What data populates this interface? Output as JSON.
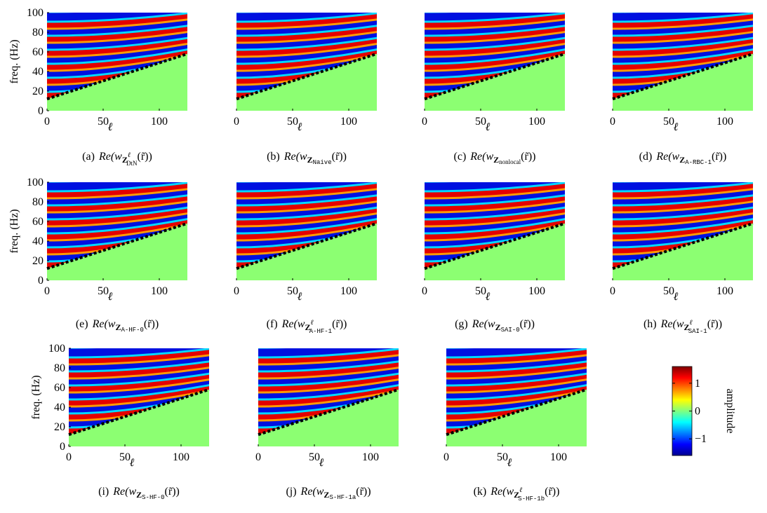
{
  "chart_data": [
    {
      "type": "heatmap",
      "xlim": [
        0,
        125
      ],
      "ylim": [
        0,
        100
      ],
      "xticks": [
        0,
        50,
        100
      ],
      "yticks": [
        0,
        20,
        40,
        60,
        80,
        100
      ],
      "ylabel": "freq. (Hz)",
      "xlabel": "ℓ",
      "line": {
        "x": [
          0,
          125
        ],
        "values": [
          12,
          58
        ]
      },
      "caption": {
        "label": "(a)",
        "pre": "Re(w",
        "sym": "Z",
        "sup": "ℓ",
        "sub": "DtN",
        "post": "(r̃))"
      }
    },
    {
      "type": "heatmap",
      "xlim": [
        0,
        125
      ],
      "ylim": [
        0,
        100
      ],
      "xticks": [
        0,
        50,
        100
      ],
      "xlabel": "ℓ",
      "line": {
        "x": [
          0,
          125
        ],
        "values": [
          12,
          58
        ]
      },
      "caption": {
        "label": "(b)",
        "pre": "Re(w",
        "sym": "Z",
        "sub": "Naive",
        "sub_font": "mono",
        "post": "(r̃))"
      }
    },
    {
      "type": "heatmap",
      "xlim": [
        0,
        125
      ],
      "ylim": [
        0,
        100
      ],
      "xticks": [
        0,
        50,
        100
      ],
      "xlabel": "ℓ",
      "line": {
        "x": [
          0,
          125
        ],
        "values": [
          12,
          58
        ]
      },
      "caption": {
        "label": "(c)",
        "pre": "Re(w",
        "sym": "Z",
        "sub": "nonlocal",
        "post": "(r̃))"
      }
    },
    {
      "type": "heatmap",
      "xlim": [
        0,
        125
      ],
      "ylim": [
        0,
        100
      ],
      "xticks": [
        0,
        50,
        100
      ],
      "xlabel": "ℓ",
      "line": {
        "x": [
          0,
          125
        ],
        "values": [
          12,
          58
        ]
      },
      "caption": {
        "label": "(d)",
        "pre": "Re(w",
        "sym": "Z",
        "sub": "A-RBC-1",
        "sub_font": "mono",
        "post": "(r̃))"
      }
    },
    {
      "type": "heatmap",
      "xlim": [
        0,
        125
      ],
      "ylim": [
        0,
        100
      ],
      "xticks": [
        0,
        50,
        100
      ],
      "yticks": [
        0,
        20,
        40,
        60,
        80,
        100
      ],
      "ylabel": "freq. (Hz)",
      "xlabel": "ℓ",
      "line": {
        "x": [
          0,
          125
        ],
        "values": [
          12,
          58
        ]
      },
      "caption": {
        "label": "(e)",
        "pre": "Re(w",
        "sym": "Z",
        "sub": "A-HF-0",
        "sub_font": "mono",
        "post": "(r̃))"
      }
    },
    {
      "type": "heatmap",
      "xlim": [
        0,
        125
      ],
      "ylim": [
        0,
        100
      ],
      "xticks": [
        0,
        50,
        100
      ],
      "xlabel": "ℓ",
      "line": {
        "x": [
          0,
          125
        ],
        "values": [
          12,
          58
        ]
      },
      "caption": {
        "label": "(f)",
        "pre": "Re(w",
        "sym": "Z",
        "sup": "ℓ",
        "sub": "A-HF-1",
        "sub_font": "mono",
        "post": "(r̃))"
      }
    },
    {
      "type": "heatmap",
      "xlim": [
        0,
        125
      ],
      "ylim": [
        0,
        100
      ],
      "xticks": [
        0,
        50,
        100
      ],
      "xlabel": "ℓ",
      "line": {
        "x": [
          0,
          125
        ],
        "values": [
          12,
          58
        ]
      },
      "caption": {
        "label": "(g)",
        "pre": "Re(w",
        "sym": "Z",
        "sub": "SAI-0",
        "sub_font": "mono",
        "post": "(r̃))"
      }
    },
    {
      "type": "heatmap",
      "xlim": [
        0,
        125
      ],
      "ylim": [
        0,
        100
      ],
      "xticks": [
        0,
        50,
        100
      ],
      "xlabel": "ℓ",
      "line": {
        "x": [
          0,
          125
        ],
        "values": [
          12,
          58
        ]
      },
      "caption": {
        "label": "(h)",
        "pre": "Re(w",
        "sym": "Z",
        "sup": "ℓ",
        "sub": "SAI-1",
        "sub_font": "mono",
        "post": "(r̃))"
      }
    },
    {
      "type": "heatmap",
      "xlim": [
        0,
        125
      ],
      "ylim": [
        0,
        100
      ],
      "xticks": [
        0,
        50,
        100
      ],
      "yticks": [
        0,
        20,
        40,
        60,
        80,
        100
      ],
      "ylabel": "freq. (Hz)",
      "xlabel": "ℓ",
      "line": {
        "x": [
          0,
          125
        ],
        "values": [
          12,
          58
        ]
      },
      "caption": {
        "label": "(i)",
        "pre": "Re(w",
        "sym": "Z",
        "sub": "S-HF-0",
        "sub_font": "mono",
        "post": "(r̃))"
      }
    },
    {
      "type": "heatmap",
      "xlim": [
        0,
        125
      ],
      "ylim": [
        0,
        100
      ],
      "xticks": [
        0,
        50,
        100
      ],
      "xlabel": "ℓ",
      "line": {
        "x": [
          0,
          125
        ],
        "values": [
          12,
          58
        ]
      },
      "caption": {
        "label": "(j)",
        "pre": "Re(w",
        "sym": "Z",
        "sub": "S-HF-1a",
        "sub_font": "mono",
        "post": "(r̃))"
      }
    },
    {
      "type": "heatmap",
      "xlim": [
        0,
        125
      ],
      "ylim": [
        0,
        100
      ],
      "xticks": [
        0,
        50,
        100
      ],
      "xlabel": "ℓ",
      "line": {
        "x": [
          0,
          125
        ],
        "values": [
          12,
          58
        ]
      },
      "caption": {
        "label": "(k)",
        "pre": "Re(w",
        "sym": "Z",
        "sup": "ℓ",
        "sub": "S-HF-1b",
        "sub_font": "mono",
        "post": "(r̃))"
      }
    }
  ],
  "colorbar": {
    "label": "amplitude",
    "clim": [
      -1.6,
      1.6
    ],
    "ticks": [
      1,
      0,
      {
        "value": -1,
        "label": "−1"
      }
    ]
  }
}
